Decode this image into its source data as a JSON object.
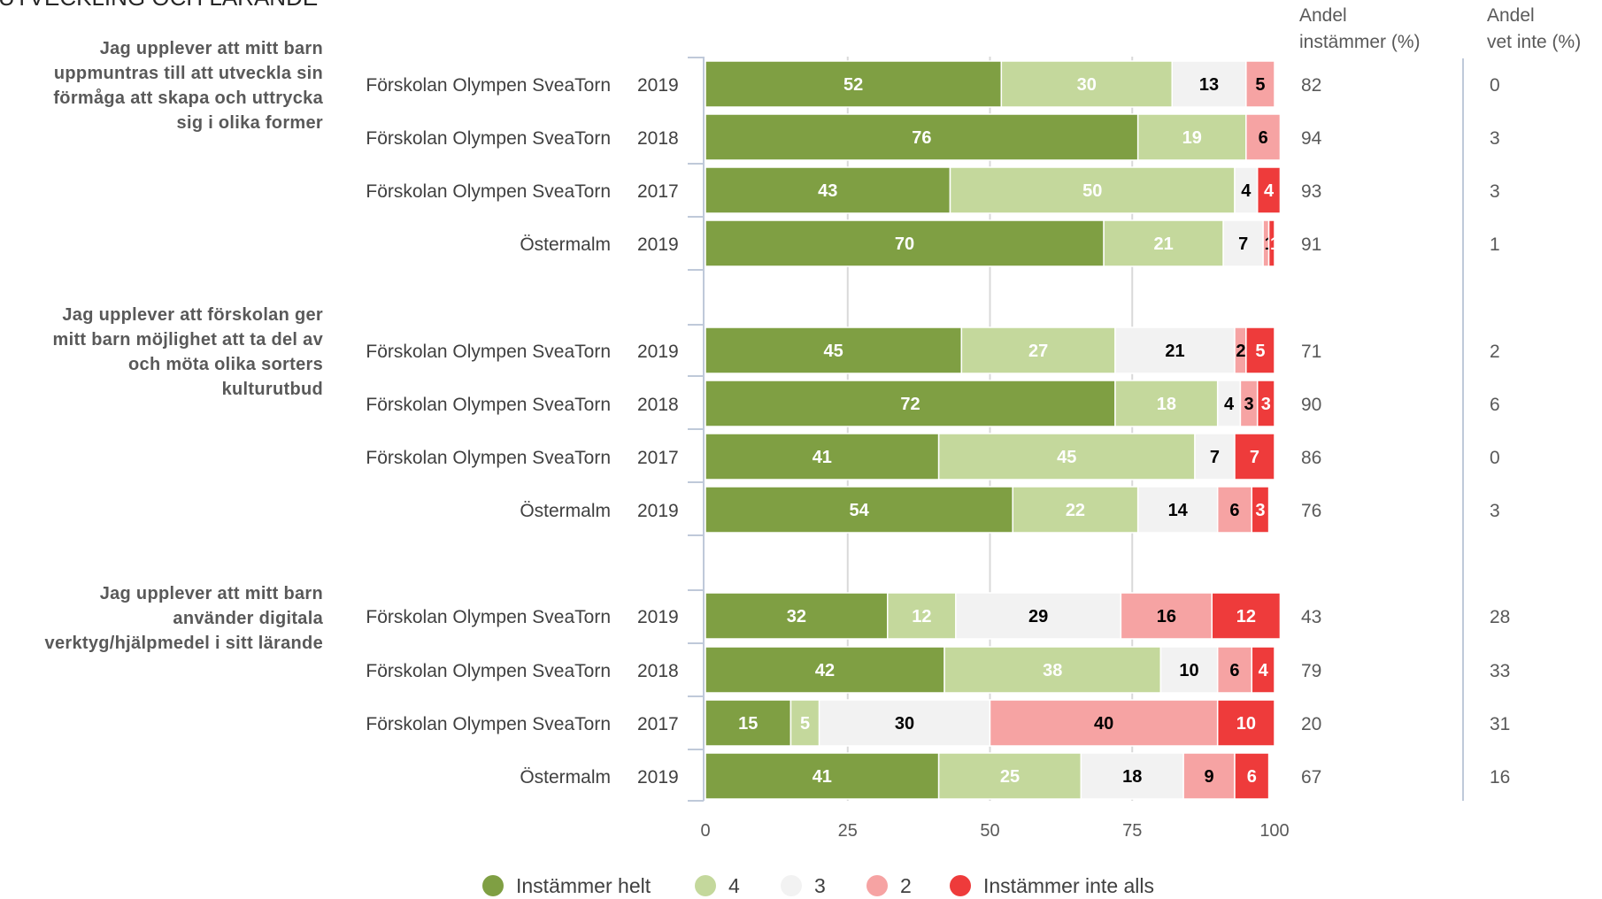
{
  "header": {
    "section_title": "UTVECKLING OCH LÄRANDE"
  },
  "colors": {
    "instammer_helt": "#7f9f43",
    "four": "#c4d89c",
    "three": "#f2f2f2",
    "two": "#f6a3a3",
    "instammer_inte_alls": "#ee3b3b",
    "grid": "#d9d9d9",
    "axis": "#bfc9d9"
  },
  "side_columns": {
    "agree_header": [
      "Andel",
      "instämmer (%)"
    ],
    "dontknow_header": [
      "Andel",
      "vet inte (%)"
    ]
  },
  "chart_data": {
    "type": "bar",
    "orientation": "horizontal",
    "stacked": true,
    "xlim": [
      0,
      100
    ],
    "xticks": [
      "0",
      "25",
      "50",
      "75",
      "100"
    ],
    "legend": {
      "placement": "bottom",
      "entries": [
        "Instämmer helt",
        "4",
        "3",
        "2",
        "Instämmer inte alls"
      ]
    },
    "groups": [
      {
        "question": [
          "Jag upplever att mitt barn",
          "uppmuntras till att utveckla sin",
          "förmåga att skapa och uttrycka",
          "sig i olika former"
        ],
        "rows": [
          {
            "unit": "Förskolan Olympen SveaTorn",
            "year": "2019",
            "values": [
              52,
              30,
              13,
              5,
              0
            ],
            "agree": "82",
            "dontknow": "0"
          },
          {
            "unit": "Förskolan Olympen SveaTorn",
            "year": "2018",
            "values": [
              76,
              19,
              0,
              6,
              0
            ],
            "agree": "94",
            "dontknow": "3"
          },
          {
            "unit": "Förskolan Olympen SveaTorn",
            "year": "2017",
            "values": [
              43,
              50,
              4,
              0,
              4
            ],
            "agree": "93",
            "dontknow": "3"
          },
          {
            "unit": "Östermalm",
            "year": "2019",
            "values": [
              70,
              21,
              7,
              1,
              1
            ],
            "agree": "91",
            "dontknow": "1"
          }
        ]
      },
      {
        "question": [
          "Jag upplever att förskolan ger",
          "mitt barn möjlighet att ta del av",
          "och möta olika sorters",
          "kulturutbud"
        ],
        "rows": [
          {
            "unit": "Förskolan Olympen SveaTorn",
            "year": "2019",
            "values": [
              45,
              27,
              21,
              2,
              5
            ],
            "agree": "71",
            "dontknow": "2"
          },
          {
            "unit": "Förskolan Olympen SveaTorn",
            "year": "2018",
            "values": [
              72,
              18,
              4,
              3,
              3
            ],
            "agree": "90",
            "dontknow": "6"
          },
          {
            "unit": "Förskolan Olympen SveaTorn",
            "year": "2017",
            "values": [
              41,
              45,
              7,
              0,
              7
            ],
            "agree": "86",
            "dontknow": "0"
          },
          {
            "unit": "Östermalm",
            "year": "2019",
            "values": [
              54,
              22,
              14,
              6,
              3
            ],
            "agree": "76",
            "dontknow": "3"
          }
        ]
      },
      {
        "question": [
          "Jag upplever att mitt barn",
          "använder digitala",
          "verktyg/hjälpmedel i sitt lärande"
        ],
        "rows": [
          {
            "unit": "Förskolan Olympen SveaTorn",
            "year": "2019",
            "values": [
              32,
              12,
              29,
              16,
              12
            ],
            "agree": "43",
            "dontknow": "28"
          },
          {
            "unit": "Förskolan Olympen SveaTorn",
            "year": "2018",
            "values": [
              42,
              38,
              10,
              6,
              4
            ],
            "agree": "79",
            "dontknow": "33"
          },
          {
            "unit": "Förskolan Olympen SveaTorn",
            "year": "2017",
            "values": [
              15,
              5,
              30,
              40,
              10
            ],
            "agree": "20",
            "dontknow": "31"
          },
          {
            "unit": "Östermalm",
            "year": "2019",
            "values": [
              41,
              25,
              18,
              9,
              6
            ],
            "agree": "67",
            "dontknow": "16"
          }
        ]
      }
    ]
  }
}
